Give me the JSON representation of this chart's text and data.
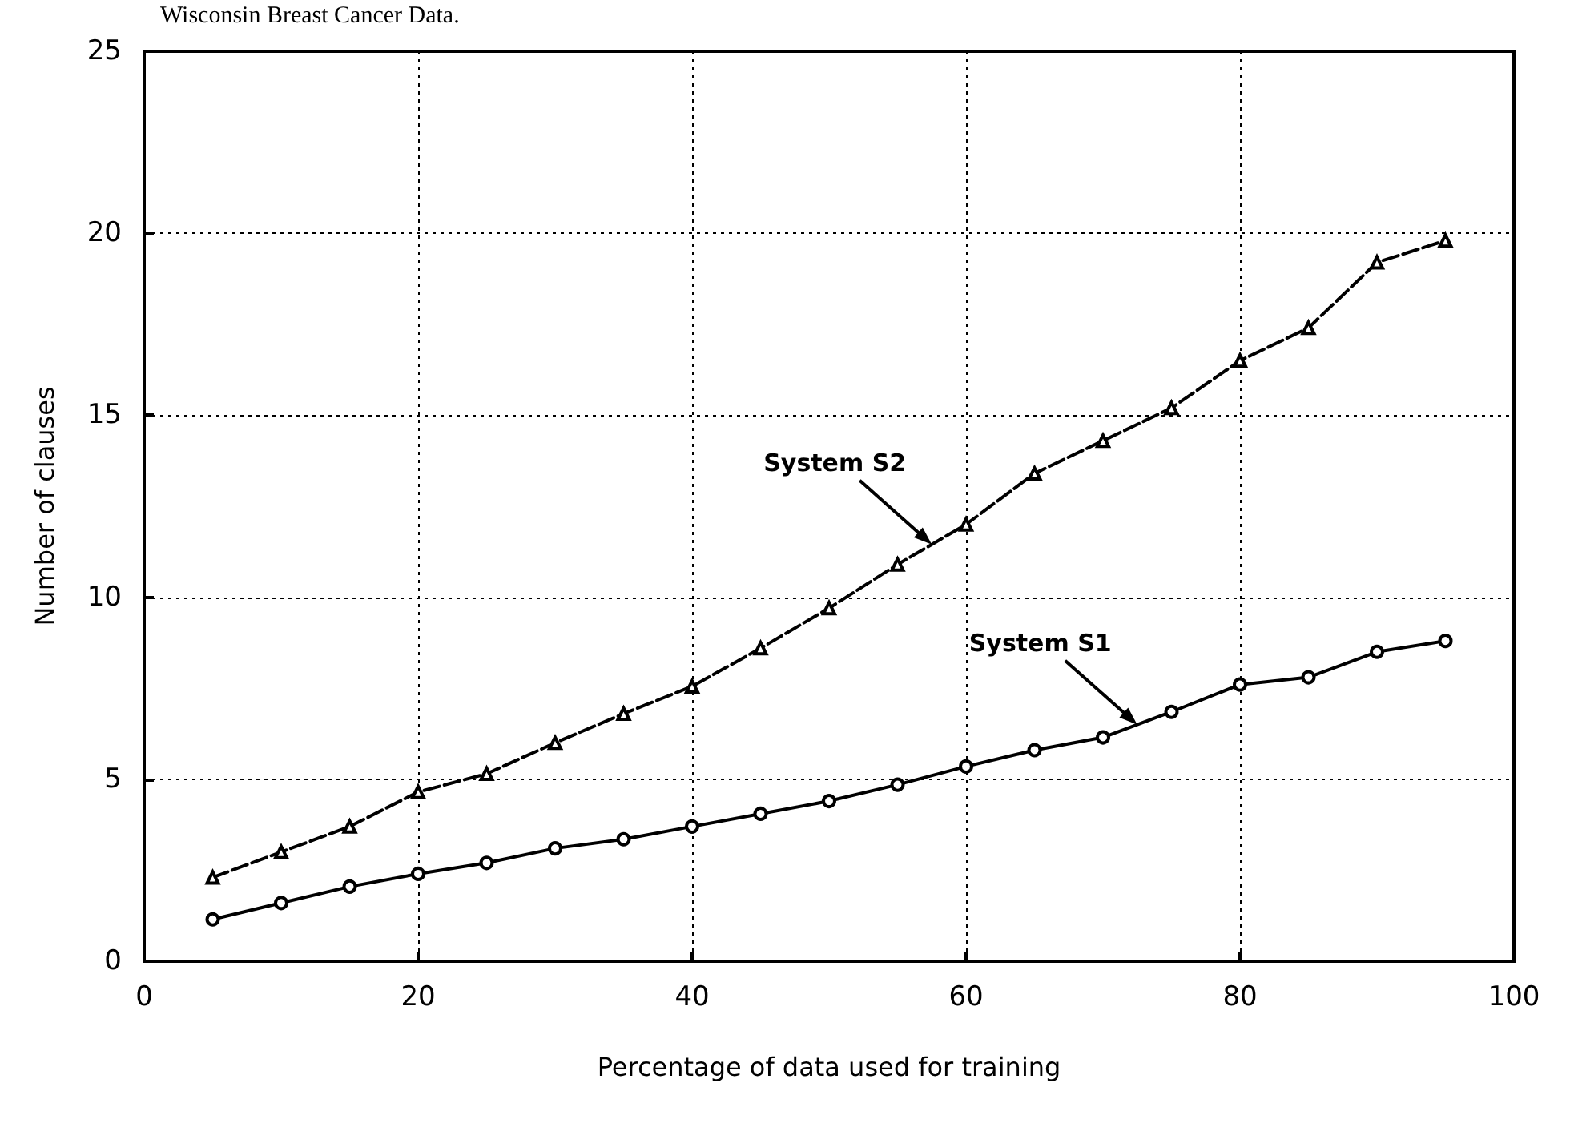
{
  "chart_data": {
    "type": "line",
    "title": "Wisconsin Breast Cancer Data.",
    "xlabel": "Percentage of data used for training",
    "ylabel": "Number of clauses",
    "x": [
      5,
      10,
      15,
      20,
      25,
      30,
      35,
      40,
      45,
      50,
      55,
      60,
      65,
      70,
      75,
      80,
      85,
      90,
      95
    ],
    "series": [
      {
        "name": "System S2",
        "color": "#000000",
        "marker": "triangle",
        "line_style": "dashed",
        "values": [
          2.3,
          3.0,
          3.7,
          4.65,
          5.15,
          6.0,
          6.8,
          7.55,
          8.6,
          9.7,
          10.9,
          12.0,
          13.4,
          14.3,
          15.2,
          16.5,
          17.4,
          19.2,
          19.8
        ]
      },
      {
        "name": "System S1",
        "color": "#000000",
        "marker": "circle",
        "line_style": "solid",
        "values": [
          1.15,
          1.6,
          2.05,
          2.4,
          2.7,
          3.1,
          3.35,
          3.7,
          4.05,
          4.4,
          4.85,
          5.35,
          5.8,
          6.15,
          6.85,
          7.6,
          7.8,
          8.5,
          8.8
        ]
      }
    ],
    "xlim": [
      0,
      100
    ],
    "xticks": [
      0,
      20,
      40,
      60,
      80,
      100
    ],
    "ylim": [
      0,
      25
    ],
    "yticks": [
      0,
      5,
      10,
      15,
      20,
      25
    ],
    "grid": true,
    "legend": false
  }
}
